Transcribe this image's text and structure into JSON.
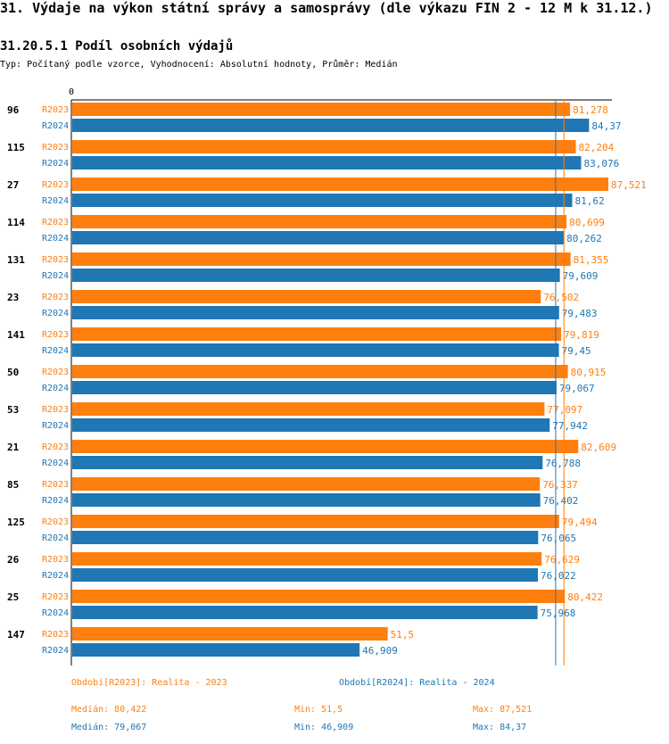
{
  "title": "31. Výdaje na výkon státní správy a samosprávy (dle výkazu FIN 2 - 12 M k 31.12.)",
  "subtitle": "31.20.5.1 Podíl osobních výdajů",
  "meta": "Typ: Počítaný podle vzorce, Vyhodnocení: Absolutní hodnoty, Průměr: Medián",
  "colors": {
    "r2023": "#ff7f0e",
    "r2024": "#1f77b4"
  },
  "chart_data": {
    "type": "bar",
    "orientation": "horizontal",
    "axis_zero_label": "0",
    "xlim": [
      0,
      87.521
    ],
    "categories": [
      "96",
      "115",
      "27",
      "114",
      "131",
      "23",
      "141",
      "50",
      "53",
      "21",
      "85",
      "125",
      "26",
      "25",
      "147"
    ],
    "series": [
      {
        "name": "R2023",
        "values": [
          81.278,
          82.204,
          87.521,
          80.699,
          81.355,
          76.502,
          79.819,
          80.915,
          77.097,
          82.609,
          76.337,
          79.494,
          76.629,
          80.422,
          51.5
        ],
        "labels": [
          "81,278",
          "82,204",
          "87,521",
          "80,699",
          "81,355",
          "76,502",
          "79,819",
          "80,915",
          "77,097",
          "82,609",
          "76,337",
          "79,494",
          "76,629",
          "80,422",
          "51,5"
        ]
      },
      {
        "name": "R2024",
        "values": [
          84.37,
          83.076,
          81.62,
          80.262,
          79.609,
          79.483,
          79.45,
          79.067,
          77.942,
          76.788,
          76.402,
          76.065,
          76.022,
          75.968,
          46.909
        ],
        "labels": [
          "84,37",
          "83,076",
          "81,62",
          "80,262",
          "79,609",
          "79,483",
          "79,45",
          "79,067",
          "77,942",
          "76,788",
          "76,402",
          "76,065",
          "76,022",
          "75,968",
          "46,909"
        ]
      }
    ],
    "median_lines": {
      "R2023": 80.422,
      "R2024": 79.067
    }
  },
  "legend": {
    "r2023": "Období[R2023]: Realita - 2023",
    "r2024": "Období[R2024]: Realita - 2024"
  },
  "stats": {
    "r2023": {
      "median": "Medián: 80,422",
      "min": "Min: 51,5",
      "max": "Max: 87,521"
    },
    "r2024": {
      "median": "Medián: 79,067",
      "min": "Min: 46,909",
      "max": "Max: 84,37"
    }
  }
}
